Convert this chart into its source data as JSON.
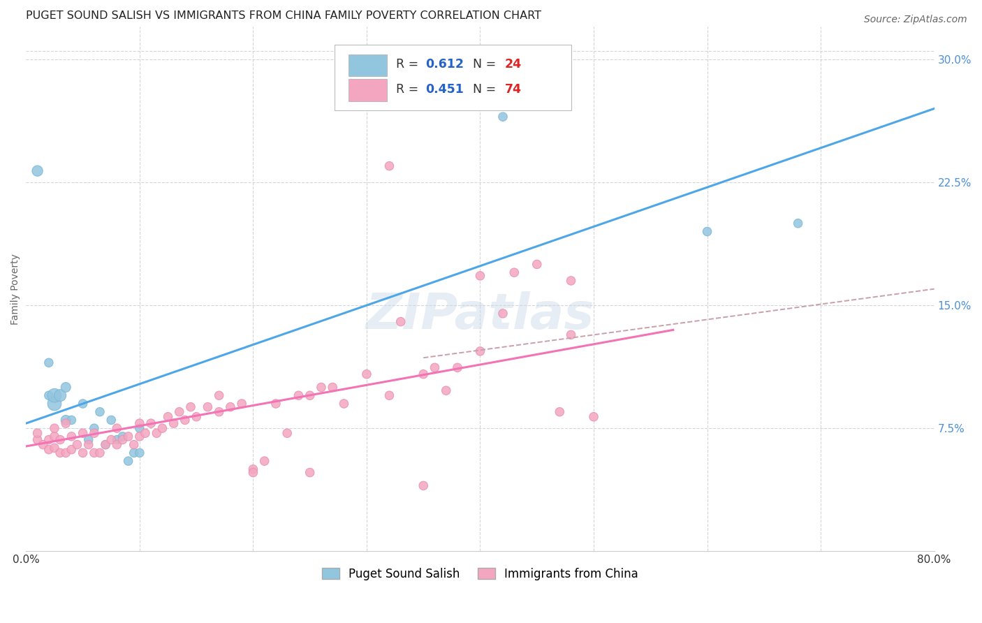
{
  "title": "PUGET SOUND SALISH VS IMMIGRANTS FROM CHINA FAMILY POVERTY CORRELATION CHART",
  "source": "Source: ZipAtlas.com",
  "ylabel": "Family Poverty",
  "xlim": [
    0.0,
    0.8
  ],
  "ylim": [
    0.0,
    0.32
  ],
  "ytick_positions": [
    0.075,
    0.15,
    0.225,
    0.3
  ],
  "ytick_labels": [
    "7.5%",
    "15.0%",
    "22.5%",
    "30.0%"
  ],
  "blue_color": "#92c5de",
  "pink_color": "#f4a6c0",
  "blue_line_color": "#4da6e8",
  "pink_line_color": "#f472b6",
  "dashed_line_color": "#c9a0a8",
  "tick_color": "#4a90d9",
  "legend_R_color": "#2563c7",
  "legend_N_color": "#dc2626",
  "blue_R": 0.612,
  "blue_N": 24,
  "pink_R": 0.451,
  "pink_N": 74,
  "watermark": "ZIPatlas",
  "blue_scatter_x": [
    0.01,
    0.02,
    0.02,
    0.025,
    0.025,
    0.03,
    0.035,
    0.035,
    0.04,
    0.05,
    0.055,
    0.06,
    0.065,
    0.07,
    0.075,
    0.08,
    0.085,
    0.09,
    0.095,
    0.1,
    0.1,
    0.42,
    0.6,
    0.68
  ],
  "blue_scatter_y": [
    0.232,
    0.115,
    0.095,
    0.09,
    0.095,
    0.095,
    0.1,
    0.08,
    0.08,
    0.09,
    0.068,
    0.075,
    0.085,
    0.065,
    0.08,
    0.068,
    0.07,
    0.055,
    0.06,
    0.06,
    0.075,
    0.265,
    0.195,
    0.2
  ],
  "blue_sizes": [
    120,
    80,
    80,
    200,
    200,
    150,
    100,
    100,
    80,
    80,
    80,
    80,
    80,
    80,
    80,
    80,
    80,
    80,
    80,
    80,
    80,
    80,
    80,
    80
  ],
  "pink_scatter_x": [
    0.01,
    0.01,
    0.015,
    0.02,
    0.02,
    0.025,
    0.025,
    0.025,
    0.03,
    0.03,
    0.035,
    0.035,
    0.04,
    0.04,
    0.045,
    0.05,
    0.05,
    0.055,
    0.06,
    0.06,
    0.065,
    0.07,
    0.075,
    0.08,
    0.08,
    0.085,
    0.09,
    0.095,
    0.1,
    0.1,
    0.105,
    0.11,
    0.115,
    0.12,
    0.125,
    0.13,
    0.135,
    0.14,
    0.145,
    0.15,
    0.16,
    0.17,
    0.17,
    0.18,
    0.19,
    0.2,
    0.21,
    0.22,
    0.23,
    0.24,
    0.25,
    0.26,
    0.27,
    0.28,
    0.3,
    0.32,
    0.33,
    0.35,
    0.36,
    0.37,
    0.38,
    0.4,
    0.4,
    0.42,
    0.43,
    0.45,
    0.47,
    0.48,
    0.5,
    0.32,
    0.2,
    0.25,
    0.48,
    0.35
  ],
  "pink_scatter_y": [
    0.068,
    0.072,
    0.065,
    0.062,
    0.068,
    0.063,
    0.07,
    0.075,
    0.06,
    0.068,
    0.06,
    0.078,
    0.062,
    0.07,
    0.065,
    0.06,
    0.072,
    0.065,
    0.06,
    0.072,
    0.06,
    0.065,
    0.068,
    0.065,
    0.075,
    0.068,
    0.07,
    0.065,
    0.07,
    0.078,
    0.072,
    0.078,
    0.072,
    0.075,
    0.082,
    0.078,
    0.085,
    0.08,
    0.088,
    0.082,
    0.088,
    0.085,
    0.095,
    0.088,
    0.09,
    0.05,
    0.055,
    0.09,
    0.072,
    0.095,
    0.095,
    0.1,
    0.1,
    0.09,
    0.108,
    0.095,
    0.14,
    0.108,
    0.112,
    0.098,
    0.112,
    0.122,
    0.168,
    0.145,
    0.17,
    0.175,
    0.085,
    0.132,
    0.082,
    0.235,
    0.048,
    0.048,
    0.165,
    0.04
  ],
  "pink_sizes": [
    80,
    80,
    80,
    80,
    80,
    80,
    80,
    80,
    80,
    80,
    80,
    80,
    80,
    80,
    80,
    80,
    80,
    80,
    80,
    80,
    80,
    80,
    80,
    80,
    80,
    80,
    80,
    80,
    80,
    80,
    80,
    80,
    80,
    80,
    80,
    80,
    80,
    80,
    80,
    80,
    80,
    80,
    80,
    80,
    80,
    80,
    80,
    80,
    80,
    80,
    80,
    80,
    80,
    80,
    80,
    80,
    80,
    80,
    80,
    80,
    80,
    80,
    80,
    80,
    80,
    80,
    80,
    80,
    80,
    80,
    80,
    80,
    80,
    80
  ],
  "blue_line_x": [
    0.0,
    0.8
  ],
  "blue_line_y": [
    0.078,
    0.27
  ],
  "pink_line_x": [
    0.0,
    0.57
  ],
  "pink_line_y": [
    0.064,
    0.135
  ],
  "dashed_line_x": [
    0.35,
    0.8
  ],
  "dashed_line_y": [
    0.118,
    0.16
  ],
  "background_color": "#ffffff",
  "grid_color": "#d5d5d5",
  "title_fontsize": 11.5,
  "axis_label_fontsize": 10,
  "tick_fontsize": 11
}
